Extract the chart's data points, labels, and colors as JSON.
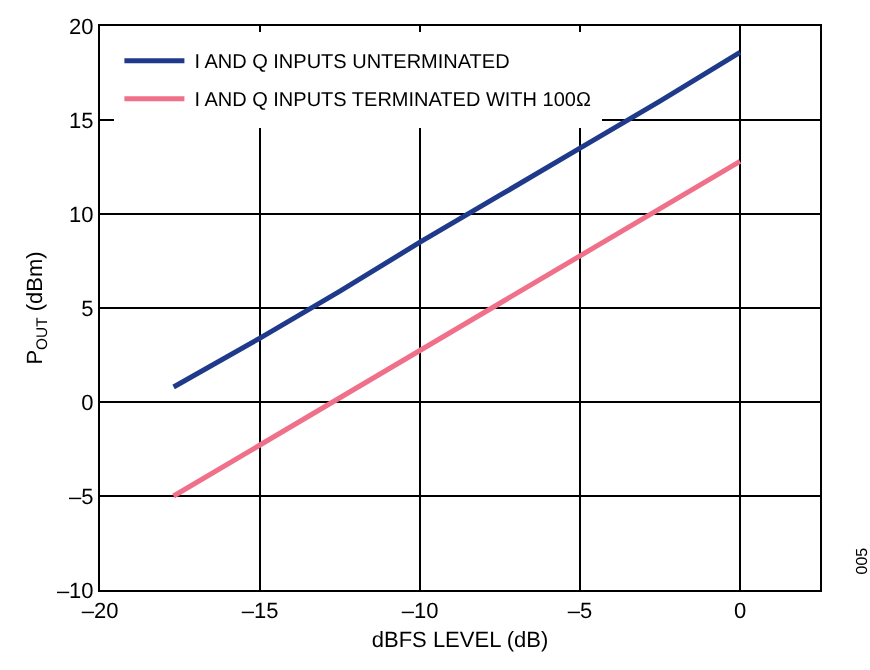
{
  "chart_data": {
    "type": "line",
    "xlabel": "dBFS LEVEL (dB)",
    "ylabel": "P$_{OUT}$ (dBm)",
    "xlim": [
      -20,
      2.5
    ],
    "xticks": [
      {
        "value": -20,
        "label": "–20"
      },
      {
        "value": -15,
        "label": "–15"
      },
      {
        "value": -10,
        "label": "–10"
      },
      {
        "value": -5,
        "label": "–5"
      },
      0
    ],
    "ylim": [
      -10,
      20
    ],
    "yticks": [
      {
        "value": -10,
        "label": "–10"
      },
      {
        "value": -5,
        "label": "–5"
      },
      0,
      5,
      10,
      15,
      20
    ],
    "grid": true,
    "legend": "top left",
    "line_style": "solid",
    "marker": "none",
    "annotations": [
      "005"
    ],
    "series": [
      {
        "name": "I AND Q INPUTS UNTERMINATED",
        "color": "#1f3a8a",
        "x": [
          -17.7,
          -15,
          -12.5,
          -10,
          -7.5,
          -5,
          -2.5,
          0
        ],
        "values": [
          0.8,
          3.4,
          5.9,
          8.5,
          11,
          13.5,
          16,
          18.6
        ]
      },
      {
        "name": "I AND Q INPUTS TERMINATED WITH 100Ω",
        "color": "#f0708a",
        "x": [
          -17.7,
          0
        ],
        "values": [
          -5,
          12.8
        ]
      }
    ]
  }
}
